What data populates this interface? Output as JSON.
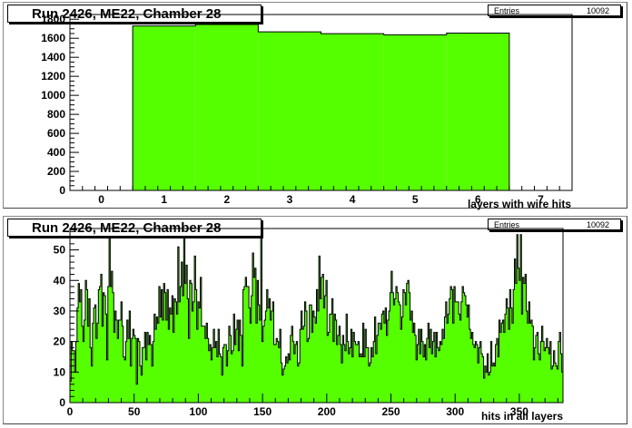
{
  "chart_data": [
    {
      "type": "bar",
      "title": "Run 2426, ME22, Chamber 28",
      "xlabel": "layers with wire hits",
      "ylabel": "",
      "stats": {
        "label": "Entries",
        "value": "10092"
      },
      "xlim": [
        -0.5,
        7.5
      ],
      "ylim": [
        0,
        1850
      ],
      "xticks": [
        0,
        1,
        2,
        3,
        4,
        5,
        6,
        7
      ],
      "yticks": [
        0,
        200,
        400,
        600,
        800,
        1000,
        1200,
        1400,
        1600,
        1800
      ],
      "categories": [
        1,
        2,
        3,
        4,
        5,
        6
      ],
      "values": [
        1730,
        1745,
        1668,
        1648,
        1637,
        1655
      ],
      "fill_color": "#55ff00"
    },
    {
      "type": "bar",
      "title": "Run 2426, ME22, Chamber 28",
      "xlabel": "hits in all layers",
      "ylabel": "",
      "stats": {
        "label": "Entries",
        "value": "10092"
      },
      "xlim": [
        0,
        384
      ],
      "ylim": [
        0,
        57
      ],
      "xticks": [
        0,
        50,
        100,
        150,
        200,
        250,
        300,
        350
      ],
      "yticks": [
        0,
        10,
        20,
        30,
        40,
        50
      ],
      "values": [
        7,
        20,
        17,
        17,
        10,
        20,
        31,
        39,
        33,
        37,
        25,
        20,
        27,
        40,
        37,
        25,
        34,
        18,
        12,
        26,
        31,
        32,
        21,
        26,
        37,
        38,
        42,
        25,
        36,
        35,
        29,
        14,
        38,
        54,
        38,
        43,
        36,
        23,
        30,
        27,
        21,
        27,
        27,
        33,
        25,
        15,
        14,
        20,
        27,
        21,
        30,
        12,
        21,
        24,
        22,
        21,
        6,
        21,
        20,
        12,
        9,
        18,
        18,
        23,
        14,
        23,
        19,
        22,
        19,
        12,
        20,
        29,
        24,
        28,
        26,
        38,
        28,
        37,
        27,
        39,
        36,
        27,
        37,
        24,
        31,
        29,
        35,
        23,
        34,
        33,
        29,
        51,
        33,
        38,
        46,
        35,
        54,
        39,
        45,
        34,
        21,
        40,
        39,
        30,
        33,
        48,
        37,
        24,
        33,
        31,
        41,
        25,
        25,
        25,
        21,
        26,
        21,
        17,
        19,
        14,
        18,
        24,
        18,
        20,
        15,
        24,
        16,
        15,
        9,
        18,
        19,
        19,
        12,
        17,
        25,
        22,
        16,
        17,
        29,
        19,
        24,
        27,
        17,
        27,
        22,
        12,
        37,
        38,
        41,
        38,
        38,
        31,
        26,
        35,
        49,
        41,
        44,
        26,
        40,
        32,
        27,
        54,
        20,
        25,
        27,
        30,
        37,
        31,
        34,
        27,
        30,
        33,
        19,
        19,
        21,
        20,
        18,
        24,
        13,
        9,
        11,
        12,
        15,
        13,
        16,
        14,
        22,
        25,
        20,
        16,
        19,
        20,
        12,
        13,
        24,
        30,
        24,
        25,
        33,
        30,
        20,
        21,
        32,
        32,
        23,
        30,
        28,
        26,
        37,
        30,
        48,
        34,
        41,
        42,
        31,
        35,
        40,
        22,
        23,
        29,
        29,
        34,
        20,
        29,
        27,
        19,
        22,
        25,
        19,
        13,
        22,
        19,
        17,
        29,
        20,
        16,
        18,
        24,
        15,
        23,
        20,
        19,
        19,
        20,
        15,
        16,
        15,
        26,
        15,
        24,
        18,
        18,
        12,
        13,
        18,
        15,
        20,
        28,
        16,
        22,
        26,
        26,
        24,
        29,
        30,
        26,
        31,
        22,
        27,
        30,
        36,
        43,
        36,
        32,
        34,
        38,
        36,
        33,
        32,
        24,
        28,
        37,
        36,
        32,
        39,
        40,
        36,
        27,
        30,
        23,
        26,
        22,
        14,
        19,
        24,
        16,
        24,
        20,
        15,
        19,
        14,
        21,
        26,
        18,
        24,
        16,
        20,
        23,
        15,
        23,
        18,
        17,
        20,
        19,
        24,
        21,
        28,
        33,
        26,
        29,
        34,
        38,
        37,
        26,
        38,
        33,
        33,
        33,
        29,
        27,
        33,
        38,
        36,
        35,
        32,
        28,
        32,
        24,
        21,
        23,
        19,
        18,
        20,
        19,
        13,
        18,
        20,
        16,
        15,
        8,
        12,
        10,
        16,
        9,
        10,
        20,
        12,
        13,
        12,
        19,
        21,
        15,
        27,
        23,
        26,
        27,
        23,
        29,
        34,
        31,
        24,
        37,
        31,
        26,
        37,
        47,
        39,
        55,
        44,
        40,
        55,
        29,
        41,
        39,
        42,
        30,
        26,
        33,
        26,
        27,
        25,
        14,
        18,
        22,
        23,
        16,
        14,
        20,
        25,
        20,
        17,
        18,
        21,
        18,
        16,
        20,
        11,
        12,
        17,
        13,
        12,
        11,
        20,
        23,
        16,
        10
      ],
      "fill_color": "#55ff00"
    }
  ]
}
